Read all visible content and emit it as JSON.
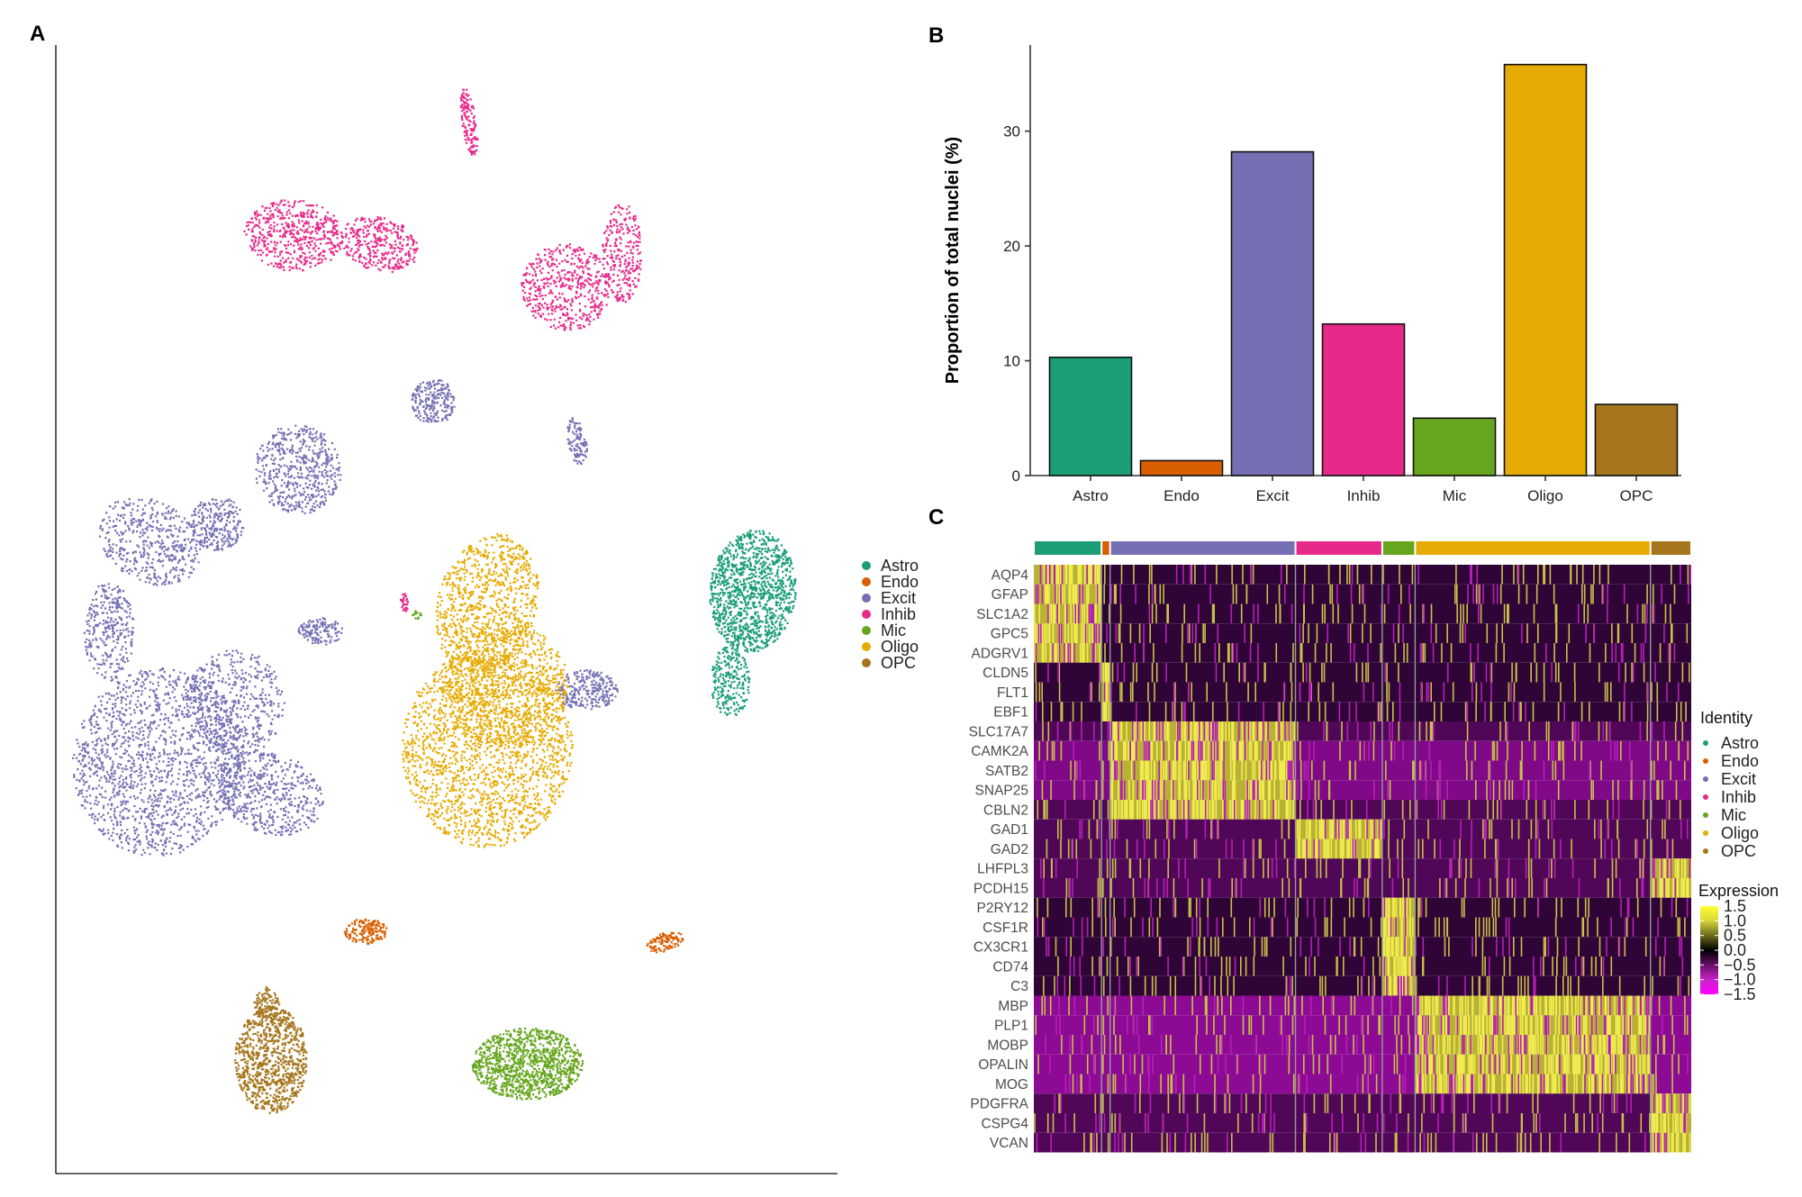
{
  "panels": {
    "a": "A",
    "b": "B",
    "c": "C"
  },
  "colors": {
    "Astro": "#1b9e77",
    "Endo": "#d95f02",
    "Excit": "#7570b3",
    "Inhib": "#e7298a",
    "Mic": "#66a61e",
    "Oligo": "#e6ab02",
    "OPC": "#a6761d"
  },
  "chart_data": [
    {
      "type": "scatter",
      "panel": "A",
      "title": "",
      "xlabel": "",
      "ylabel": "",
      "legend": {
        "placement": "right",
        "entries": [
          "Astro",
          "Endo",
          "Excit",
          "Inhib",
          "Mic",
          "Oligo",
          "OPC"
        ]
      }
    },
    {
      "type": "bar",
      "panel": "B",
      "title": "",
      "xlabel": "",
      "ylabel": "Proportion of total nuclei (%)",
      "categories": [
        "Astro",
        "Endo",
        "Excit",
        "Inhib",
        "Mic",
        "Oligo",
        "OPC"
      ],
      "values": [
        10.3,
        1.3,
        28.2,
        13.2,
        5.0,
        35.8,
        6.2
      ],
      "ylim": [
        0,
        37.5
      ],
      "yticks": [
        0,
        10,
        20,
        30
      ],
      "ytick_labels": [
        "0",
        "10",
        "20",
        "30"
      ],
      "grid": false
    },
    {
      "type": "heatmap",
      "panel": "C",
      "title": "",
      "genes": [
        "AQP4",
        "GFAP",
        "SLC1A2",
        "GPC5",
        "ADGRV1",
        "CLDN5",
        "FLT1",
        "EBF1",
        "SLC17A7",
        "CAMK2A",
        "SATB2",
        "SNAP25",
        "CBLN2",
        "GAD1",
        "GAD2",
        "LHFPL3",
        "PCDH15",
        "P2RY12",
        "CSF1R",
        "CX3CR1",
        "CD74",
        "C3",
        "MBP",
        "PLP1",
        "MOBP",
        "OPALIN",
        "MOG",
        "PDGFRA",
        "CSPG4",
        "VCAN"
      ],
      "clusters": [
        "Astro",
        "Endo",
        "Excit",
        "Inhib",
        "Mic",
        "Oligo",
        "OPC"
      ],
      "cluster_fractions": [
        0.103,
        0.013,
        0.282,
        0.132,
        0.05,
        0.358,
        0.062
      ],
      "marker_genes": {
        "Astro": [
          "AQP4",
          "GFAP",
          "SLC1A2",
          "GPC5",
          "ADGRV1"
        ],
        "Endo": [
          "CLDN5",
          "FLT1",
          "EBF1"
        ],
        "Excit": [
          "SLC17A7",
          "CAMK2A",
          "SATB2",
          "SNAP25",
          "CBLN2"
        ],
        "Inhib": [
          "GAD1",
          "GAD2"
        ],
        "OPC": [
          "LHFPL3",
          "PCDH15",
          "PDGFRA",
          "CSPG4",
          "VCAN"
        ],
        "Mic": [
          "P2RY12",
          "CSF1R",
          "CX3CR1",
          "CD74",
          "C3"
        ],
        "Oligo": [
          "MBP",
          "PLP1",
          "MOBP",
          "OPALIN",
          "MOG"
        ]
      },
      "identity_legend": {
        "title": "Identity",
        "entries": [
          "Astro",
          "Endo",
          "Excit",
          "Inhib",
          "Mic",
          "Oligo",
          "OPC"
        ]
      },
      "expression_legend": {
        "title": "Expression",
        "range": [
          -1.5,
          1.5
        ],
        "ticks": [
          1.5,
          1.0,
          0.5,
          0.0,
          -0.5,
          -1.0,
          -1.5
        ],
        "tick_labels": [
          "1.5",
          "1.0",
          "0.5",
          "0.0",
          "−0.5",
          "−1.0",
          "−1.5"
        ],
        "colors": {
          "low": "#ff00ff",
          "mid": "#000000",
          "high": "#ffff00"
        }
      }
    }
  ]
}
